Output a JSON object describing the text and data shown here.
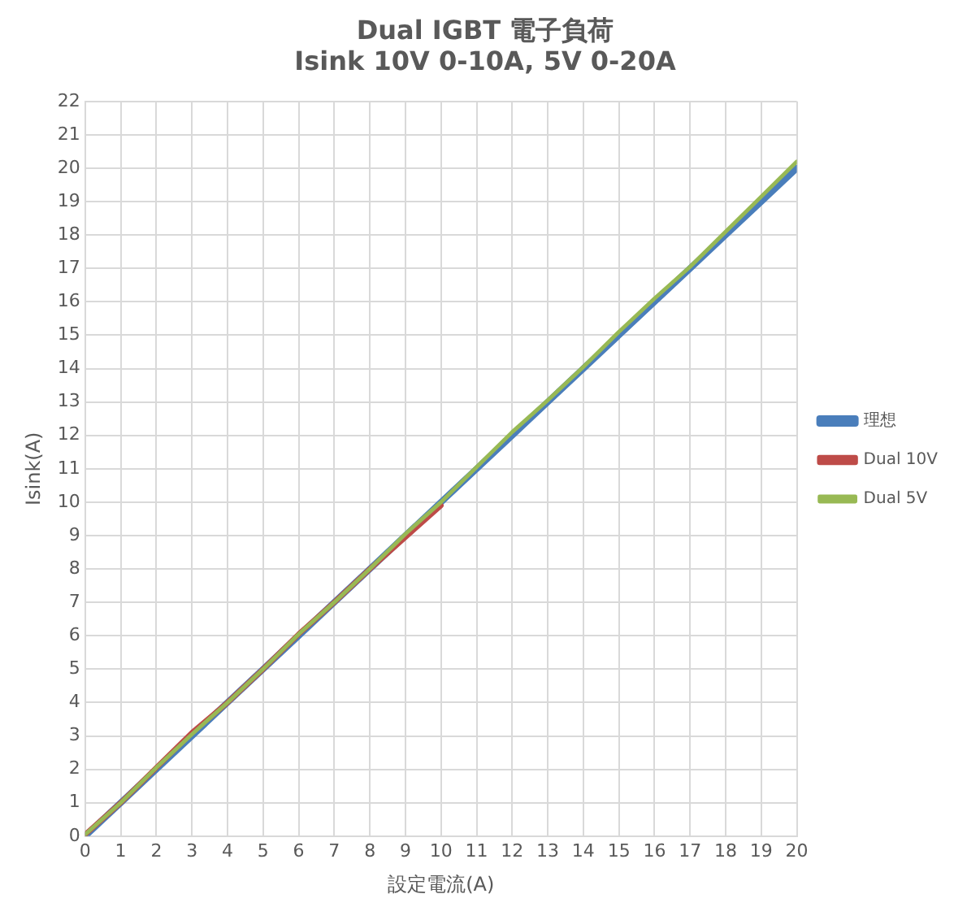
{
  "chart_data": {
    "type": "line",
    "title": [
      "Dual IGBT 電子負荷",
      "Isink 10V 0-10A, 5V 0-20A"
    ],
    "xlabel": "設定電流(A)",
    "ylabel": "Isink(A)",
    "x": [
      0,
      1,
      2,
      3,
      4,
      5,
      6,
      7,
      8,
      9,
      10,
      11,
      12,
      13,
      14,
      15,
      16,
      17,
      18,
      19,
      20
    ],
    "series": [
      {
        "name": "理想",
        "color": "#4a7ebb",
        "values": [
          0,
          1,
          2,
          3,
          4,
          5,
          6,
          7,
          8,
          9,
          10,
          11,
          12,
          13,
          14,
          15,
          16,
          17,
          18,
          19,
          20
        ]
      },
      {
        "name": "Dual 10V",
        "color": "#be4b48",
        "values": [
          0.05,
          1,
          2.05,
          3.1,
          4,
          5,
          6.05,
          7,
          8,
          8.95,
          9.9,
          null,
          null,
          null,
          null,
          null,
          null,
          null,
          null,
          null,
          null
        ]
      },
      {
        "name": "Dual 5V",
        "color": "#98b954",
        "values": [
          0.05,
          1,
          2.05,
          3.05,
          4,
          5,
          6.05,
          7,
          8,
          9.05,
          10,
          11.05,
          12.1,
          13.05,
          14.05,
          15.1,
          16.1,
          17.05,
          18.1,
          19.15,
          20.2
        ]
      }
    ],
    "xlim": [
      0,
      20
    ],
    "xticks": [
      0,
      1,
      2,
      3,
      4,
      5,
      6,
      7,
      8,
      9,
      10,
      11,
      12,
      13,
      14,
      15,
      16,
      17,
      18,
      19,
      20
    ],
    "ylim": [
      0,
      22
    ],
    "yticks": [
      0,
      1,
      2,
      3,
      4,
      5,
      6,
      7,
      8,
      9,
      10,
      11,
      12,
      13,
      14,
      15,
      16,
      17,
      18,
      19,
      20,
      21,
      22
    ],
    "grid": true,
    "legend": "right",
    "marker": "none",
    "line_style": "solid"
  }
}
